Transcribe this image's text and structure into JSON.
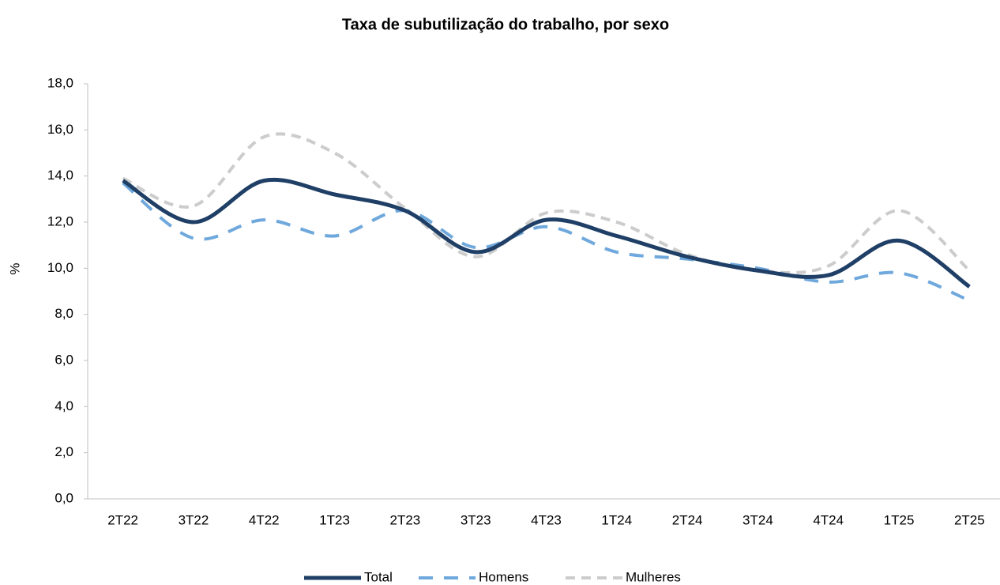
{
  "chart_data": {
    "type": "line",
    "title": "Taxa de subutilização do trabalho, por sexo",
    "ylabel": "%",
    "categories": [
      "2T22",
      "3T22",
      "4T22",
      "1T23",
      "2T23",
      "3T23",
      "4T23",
      "1T24",
      "2T24",
      "3T24",
      "4T24",
      "1T25",
      "2T25"
    ],
    "series": [
      {
        "name": "Total",
        "color": "#1f3f66",
        "values": [
          13.8,
          12.0,
          13.8,
          13.2,
          12.5,
          10.7,
          12.1,
          11.4,
          10.5,
          9.9,
          9.7,
          11.2,
          9.2
        ]
      },
      {
        "name": "Homens",
        "color": "#6fa8dc",
        "values": [
          13.7,
          11.3,
          12.1,
          11.4,
          12.5,
          10.9,
          11.8,
          10.7,
          10.4,
          10.0,
          9.4,
          9.8,
          8.6
        ]
      },
      {
        "name": "Mulheres",
        "color": "#cccccc",
        "values": [
          13.9,
          12.7,
          15.7,
          15.0,
          12.6,
          10.5,
          12.4,
          12.0,
          10.6,
          9.9,
          10.1,
          12.5,
          9.9
        ]
      }
    ],
    "ylim": [
      0,
      18
    ],
    "yticks": [
      {
        "value": 0,
        "label": "0,0"
      },
      {
        "value": 2,
        "label": "2,0"
      },
      {
        "value": 4,
        "label": "4,0"
      },
      {
        "value": 6,
        "label": "6,0"
      },
      {
        "value": 8,
        "label": "8,0"
      },
      {
        "value": 10,
        "label": "10,0"
      },
      {
        "value": 12,
        "label": "12,0"
      },
      {
        "value": 14,
        "label": "14,0"
      },
      {
        "value": 16,
        "label": "16,0"
      },
      {
        "value": 18,
        "label": "18,0"
      }
    ],
    "grid": false,
    "legend": "bottom"
  }
}
